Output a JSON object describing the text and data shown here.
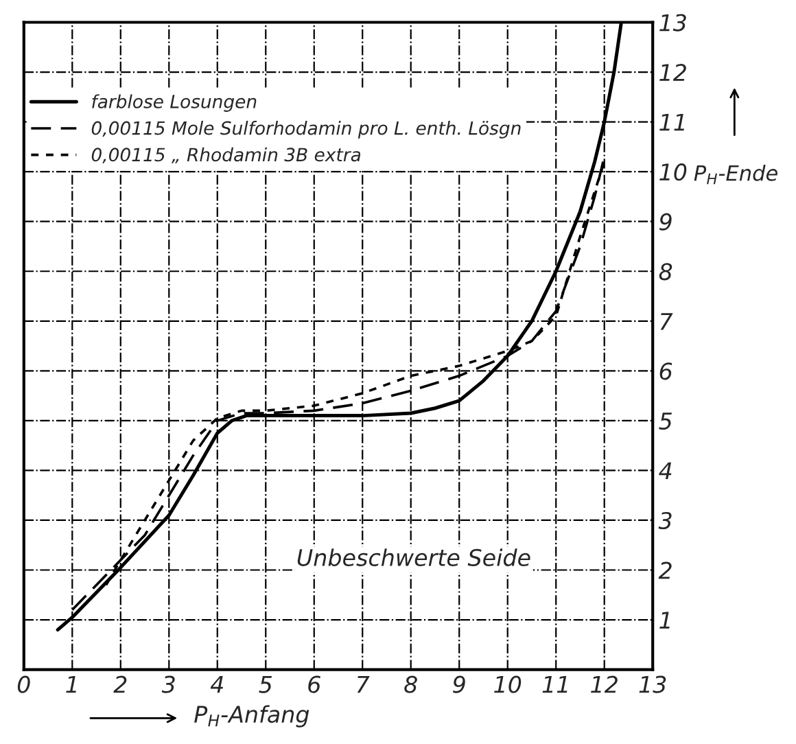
{
  "chart_data": {
    "type": "line",
    "xlabel": "P$_{H}$-Anfang",
    "ylabel": "P$_{H}$-Ende",
    "annotations": [
      "Unbeschwerte Seide"
    ],
    "xlim": [
      0,
      13
    ],
    "ylim": [
      0,
      13
    ],
    "xticks": [
      0,
      1,
      2,
      3,
      4,
      5,
      6,
      7,
      8,
      9,
      10,
      11,
      12,
      13
    ],
    "yticks": [
      {
        "value": 0,
        "label": null
      },
      1,
      2,
      3,
      4,
      5,
      6,
      7,
      8,
      9,
      10,
      11,
      12,
      13
    ],
    "grid": true,
    "legend": "top left",
    "marker": "none",
    "series": [
      {
        "name": "farblose Losungen",
        "color": "#000000",
        "line_style": "solid",
        "x": [
          0.7,
          1,
          2,
          3,
          3.5,
          4,
          4.3,
          4.6,
          5,
          6,
          7,
          8,
          8.5,
          9,
          9.5,
          10,
          10.5,
          11,
          11.5,
          11.8,
          12,
          12.2,
          12.35
        ],
        "values": [
          0.8,
          1.05,
          2.05,
          3.1,
          3.9,
          4.75,
          5.0,
          5.1,
          5.1,
          5.1,
          5.1,
          5.15,
          5.25,
          5.4,
          5.8,
          6.3,
          7.0,
          8.0,
          9.2,
          10.2,
          11.0,
          12.0,
          13.0
        ]
      },
      {
        "name": "0,00115 Mole Sulforhodamin pro L. enth. Lösgn",
        "color": "#000000",
        "line_style": "dashed",
        "x": [
          1,
          2,
          2.5,
          3,
          3.5,
          4,
          4.5,
          5,
          6,
          7,
          8,
          9,
          10,
          10.5,
          11,
          11.5,
          11.8,
          12
        ],
        "values": [
          1.2,
          2.2,
          2.7,
          3.5,
          4.3,
          5.0,
          5.15,
          5.15,
          5.2,
          5.35,
          5.6,
          5.9,
          6.3,
          6.6,
          7.2,
          8.5,
          9.5,
          10.3
        ]
      },
      {
        "name": "0,00115 „ Rhodamin 3B extra",
        "color": "#000000",
        "line_style": "dotted",
        "x": [
          1.7,
          2,
          2.5,
          3,
          3.5,
          4,
          4.5,
          5,
          6,
          7,
          8,
          9,
          10,
          10.5,
          11,
          11.5,
          12
        ],
        "values": [
          1.7,
          2.2,
          3.0,
          3.8,
          4.6,
          5.05,
          5.2,
          5.2,
          5.3,
          5.55,
          5.9,
          6.1,
          6.4,
          6.6,
          7.1,
          8.7,
          10.2
        ]
      }
    ]
  }
}
